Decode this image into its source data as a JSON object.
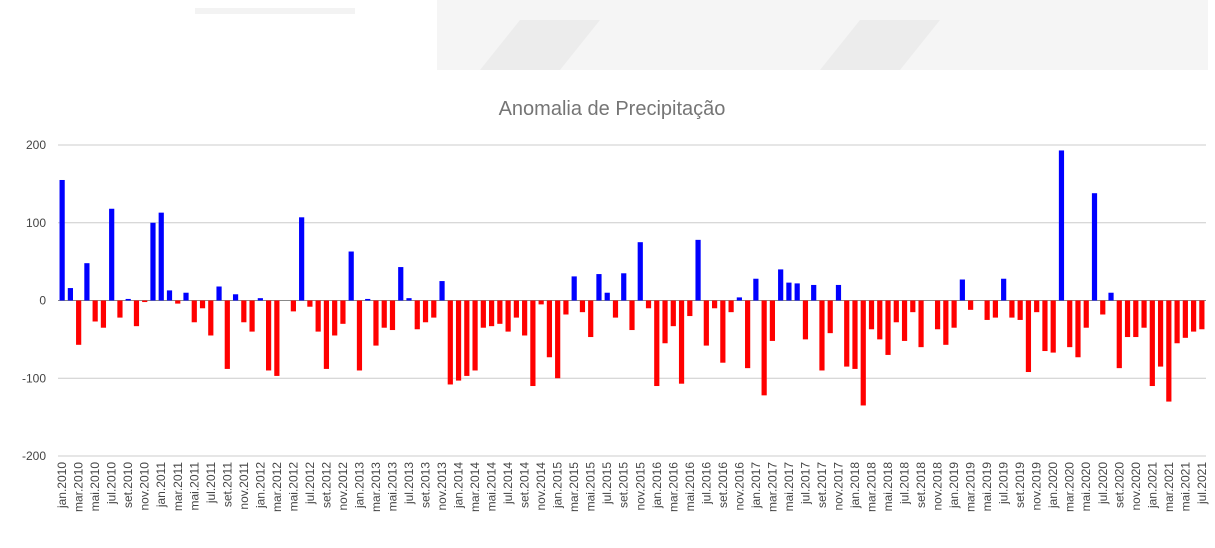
{
  "chart_data": {
    "type": "bar",
    "title": "Anomalia de Precipitação",
    "categories": [
      "jan.2010",
      null,
      "mar.2010",
      null,
      "mai.2010",
      null,
      "jul.2010",
      null,
      "set.2010",
      null,
      "nov.2010",
      null,
      "jan.2011",
      null,
      "mar.2011",
      null,
      "mai.2011",
      null,
      "jul.2011",
      null,
      "set.2011",
      null,
      "nov.2011",
      null,
      "jan.2012",
      null,
      "mar.2012",
      null,
      "mai.2012",
      null,
      "jul.2012",
      null,
      "set.2012",
      null,
      "nov.2012",
      null,
      "jan.2013",
      null,
      "mar.2013",
      null,
      "mai.2013",
      null,
      "jul.2013",
      null,
      "set.2013",
      null,
      "nov.2013",
      null,
      "jan.2014",
      null,
      "mar.2014",
      null,
      "mai.2014",
      null,
      "jul.2014",
      null,
      "set.2014",
      null,
      "nov.2014",
      null,
      "jan.2015",
      null,
      "mar.2015",
      null,
      "mai.2015",
      null,
      "jul.2015",
      null,
      "set.2015",
      null,
      "nov.2015",
      null,
      "jan.2016",
      null,
      "mar.2016",
      null,
      "mai.2016",
      null,
      "jul.2016",
      null,
      "set.2016",
      null,
      "nov.2016",
      null,
      "jan.2017",
      null,
      "mar.2017",
      null,
      "mai.2017",
      null,
      "jul.2017",
      null,
      "set.2017",
      null,
      "nov.2017",
      null,
      "jan.2018",
      null,
      "mar.2018",
      null,
      "mai.2018",
      null,
      "jul.2018",
      null,
      "set.2018",
      null,
      "nov.2018",
      null,
      "jan.2019",
      null,
      "mar.2019",
      null,
      "mai.2019",
      null,
      "jul.2019",
      null,
      "set.2019",
      null,
      "nov.2019",
      null,
      "jan.2020",
      null,
      "mar.2020",
      null,
      "mai.2020",
      null,
      "jul.2020",
      null,
      "set.2020",
      null,
      "nov.2020",
      null,
      "jan.2021",
      null,
      "mar.2021",
      null,
      "mai.2021",
      null,
      "jul.2021"
    ],
    "values": [
      155,
      16,
      -57,
      48,
      -27,
      -35,
      118,
      -22,
      2,
      -33,
      -2,
      100,
      113,
      13,
      -4,
      10,
      -28,
      -10,
      -45,
      18,
      -88,
      8,
      -28,
      -40,
      3,
      -90,
      -97,
      0,
      -14,
      107,
      -8,
      -40,
      -88,
      -45,
      -30,
      63,
      -90,
      2,
      -58,
      -35,
      -38,
      43,
      3,
      -37,
      -28,
      -22,
      25,
      -108,
      -103,
      -97,
      -90,
      -35,
      -33,
      -30,
      -40,
      -22,
      -45,
      -110,
      -5,
      -73,
      -100,
      -18,
      31,
      -15,
      -47,
      34,
      10,
      -22,
      35,
      -38,
      75,
      -10,
      -110,
      -55,
      -33,
      -107,
      -20,
      78,
      -58,
      -10,
      -80,
      -15,
      4,
      -87,
      28,
      -122,
      -52,
      40,
      23,
      22,
      -50,
      20,
      -90,
      -42,
      20,
      -85,
      -88,
      -135,
      -37,
      -50,
      -70,
      -28,
      -52,
      -15,
      -60,
      0,
      -37,
      -57,
      -35,
      27,
      -12,
      0,
      -25,
      -22,
      28,
      -22,
      -25,
      -92,
      -15,
      -65,
      -67,
      193,
      -60,
      -73,
      -35,
      138,
      -18,
      10,
      -87,
      -47,
      -47,
      -35,
      -110,
      -85,
      -130,
      -55,
      -48,
      -40,
      -37
    ],
    "positive_color": "#0000ff",
    "negative_color": "#ff0000",
    "ylim": [
      -200,
      200
    ],
    "yticks": [
      -200,
      -100,
      0,
      100,
      200
    ],
    "grid": true
  }
}
